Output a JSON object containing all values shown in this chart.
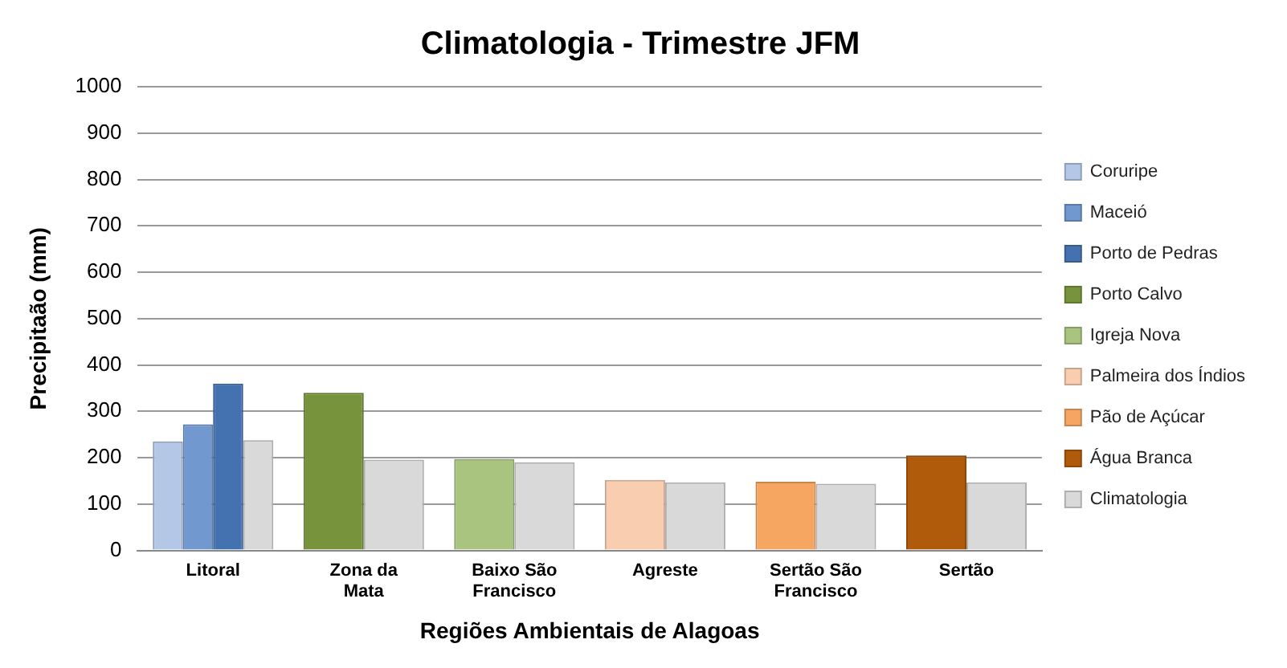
{
  "chart_data": {
    "type": "bar",
    "title": "Climatologia - Trimestre JFM",
    "xlabel": "Regiões Ambientais de Alagoas",
    "ylabel": "Precipitaão (mm)",
    "categories": [
      "Litoral",
      "Zona da Mata",
      "Baixo São Francisco",
      "Agreste",
      "Sertão São Francisco",
      "Sertão"
    ],
    "series": [
      {
        "name": "Coruripe",
        "color": "#b4c7e7",
        "values": [
          235,
          null,
          null,
          null,
          null,
          null
        ]
      },
      {
        "name": "Maceió",
        "color": "#7199d0",
        "values": [
          272,
          null,
          null,
          null,
          null,
          null
        ]
      },
      {
        "name": "Porto de Pedras",
        "color": "#4472b0",
        "values": [
          360,
          null,
          null,
          null,
          null,
          null
        ]
      },
      {
        "name": "Porto Calvo",
        "color": "#77933c",
        "values": [
          null,
          340,
          null,
          null,
          null,
          null
        ]
      },
      {
        "name": "Igreja Nova",
        "color": "#a9c47f",
        "values": [
          null,
          null,
          197,
          null,
          null,
          null
        ]
      },
      {
        "name": "Palmeira dos Índios",
        "color": "#f9cdb0",
        "values": [
          null,
          null,
          null,
          152,
          null,
          null
        ]
      },
      {
        "name": "Pão de Açúcar",
        "color": "#f6a660",
        "values": [
          null,
          null,
          null,
          null,
          148,
          null
        ]
      },
      {
        "name": "Água Branca",
        "color": "#b05a0b",
        "values": [
          null,
          null,
          null,
          null,
          null,
          205
        ]
      },
      {
        "name": "Climatologia",
        "color": "#d9d9d9",
        "values": [
          238,
          196,
          190,
          147,
          144,
          147
        ]
      }
    ],
    "ylim": [
      0,
      1000
    ],
    "yticks": [
      0,
      100,
      200,
      300,
      400,
      500,
      600,
      700,
      800,
      900,
      1000
    ],
    "grid": "y",
    "legend": "right"
  }
}
